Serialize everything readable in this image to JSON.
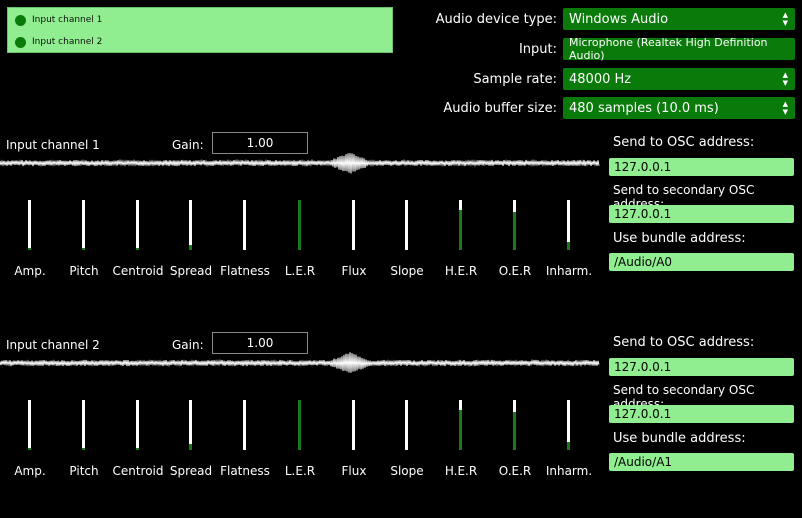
{
  "channels_list": [
    "Input channel 1",
    "Input channel 2"
  ],
  "settings": {
    "device_type": {
      "label": "Audio device type:",
      "value": "Windows Audio"
    },
    "input": {
      "label": "Input:",
      "value": "Microphone (Realtek High Definition Audio)"
    },
    "sample_rate": {
      "label": "Sample rate:",
      "value": "48000 Hz"
    },
    "buffer_size": {
      "label": "Audio buffer size:",
      "value": "480 samples (10.0 ms)"
    }
  },
  "gain_label": "Gain:",
  "features": [
    "Amp.",
    "Pitch",
    "Centroid",
    "Spread",
    "Flatness",
    "L.E.R",
    "Flux",
    "Slope",
    "H.E.R",
    "O.E.R",
    "Inharm."
  ],
  "channels": [
    {
      "name": "Input channel 1",
      "gain": "1.00",
      "meter_levels": [
        0.04,
        0.04,
        0.04,
        0.1,
        0.0,
        1.0,
        0.0,
        0.0,
        0.8,
        0.75,
        0.15
      ],
      "osc": {
        "send_label": "Send to OSC address:",
        "send_value": "127.0.0.1",
        "secondary_label": "Send to secondary OSC address:",
        "secondary_value": "127.0.0.1",
        "bundle_label": "Use bundle address:",
        "bundle_value": "/Audio/A0"
      }
    },
    {
      "name": "Input channel 2",
      "gain": "1.00",
      "meter_levels": [
        0.04,
        0.04,
        0.04,
        0.12,
        0.0,
        1.0,
        0.0,
        0.0,
        0.8,
        0.75,
        0.15
      ],
      "osc": {
        "send_label": "Send to OSC address:",
        "send_value": "127.0.0.1",
        "secondary_label": "Send to secondary OSC address:",
        "secondary_value": "127.0.0.1",
        "bundle_label": "Use bundle address:",
        "bundle_value": "/Audio/A1"
      }
    }
  ],
  "colors": {
    "accent_green": "#0a7a0a",
    "field_green": "#90ee90",
    "meter_fill": "#1a7a1a"
  }
}
